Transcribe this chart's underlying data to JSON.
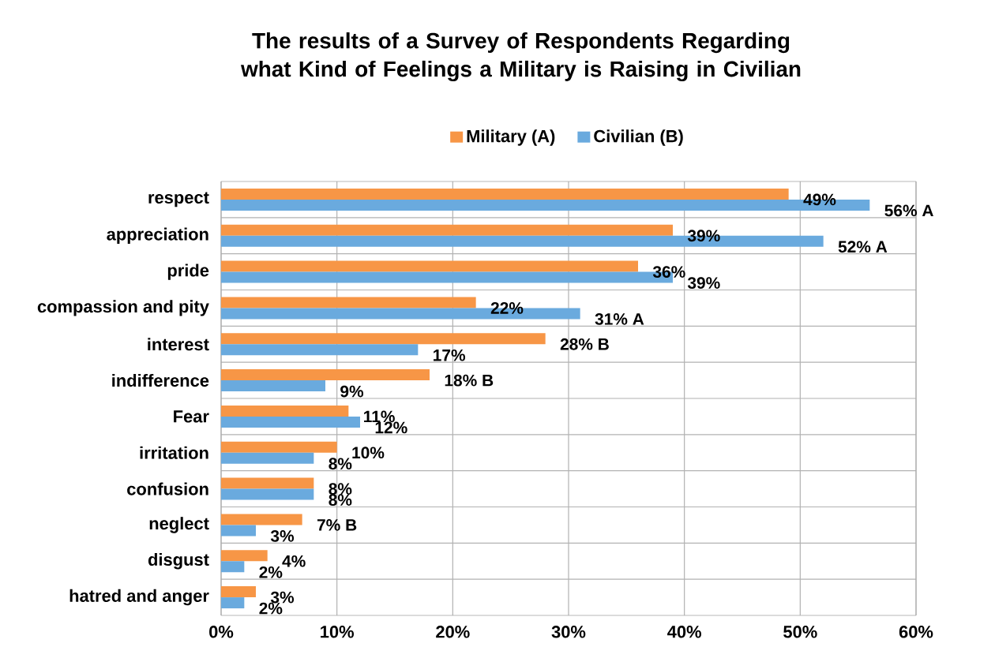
{
  "chart_data": {
    "type": "bar",
    "orientation": "horizontal",
    "title": "The results of a Survey of Respondents Regarding what Kind of Feelings a Military is Raising in Civilian",
    "categories": [
      "respect",
      "appreciation",
      "pride",
      "compassion and pity",
      "interest",
      "indifference",
      "Fear",
      "irritation",
      "confusion",
      "neglect",
      "disgust",
      "hatred and anger"
    ],
    "series": [
      {
        "name": "Military (A)",
        "color": "#f79646",
        "values": [
          49,
          39,
          36,
          22,
          28,
          18,
          11,
          10,
          8,
          7,
          4,
          3
        ],
        "value_labels": [
          "49%",
          "39%",
          "36%",
          "22%",
          "28% B",
          "18% B",
          "11%",
          "10%",
          "8%",
          "7% B",
          "4%",
          "3%"
        ]
      },
      {
        "name": "Civilian (B)",
        "color": "#6aaade",
        "values": [
          56,
          52,
          39,
          31,
          17,
          9,
          12,
          8,
          8,
          3,
          2,
          2
        ],
        "value_labels": [
          "56% A",
          "52% A",
          "39%",
          "31% A",
          "17%",
          "9%",
          "12%",
          "8%",
          "8%",
          "3%",
          "2%",
          "2%"
        ]
      }
    ],
    "xlim": [
      0,
      60
    ],
    "xticks": [
      {
        "value": 0,
        "label": "0%"
      },
      {
        "value": 10,
        "label": "10%"
      },
      {
        "value": 20,
        "label": "20%"
      },
      {
        "value": 30,
        "label": "30%"
      },
      {
        "value": 40,
        "label": "40%"
      },
      {
        "value": 50,
        "label": "50%"
      },
      {
        "value": 60,
        "label": "60%"
      }
    ],
    "grid": true,
    "legend": "top"
  }
}
